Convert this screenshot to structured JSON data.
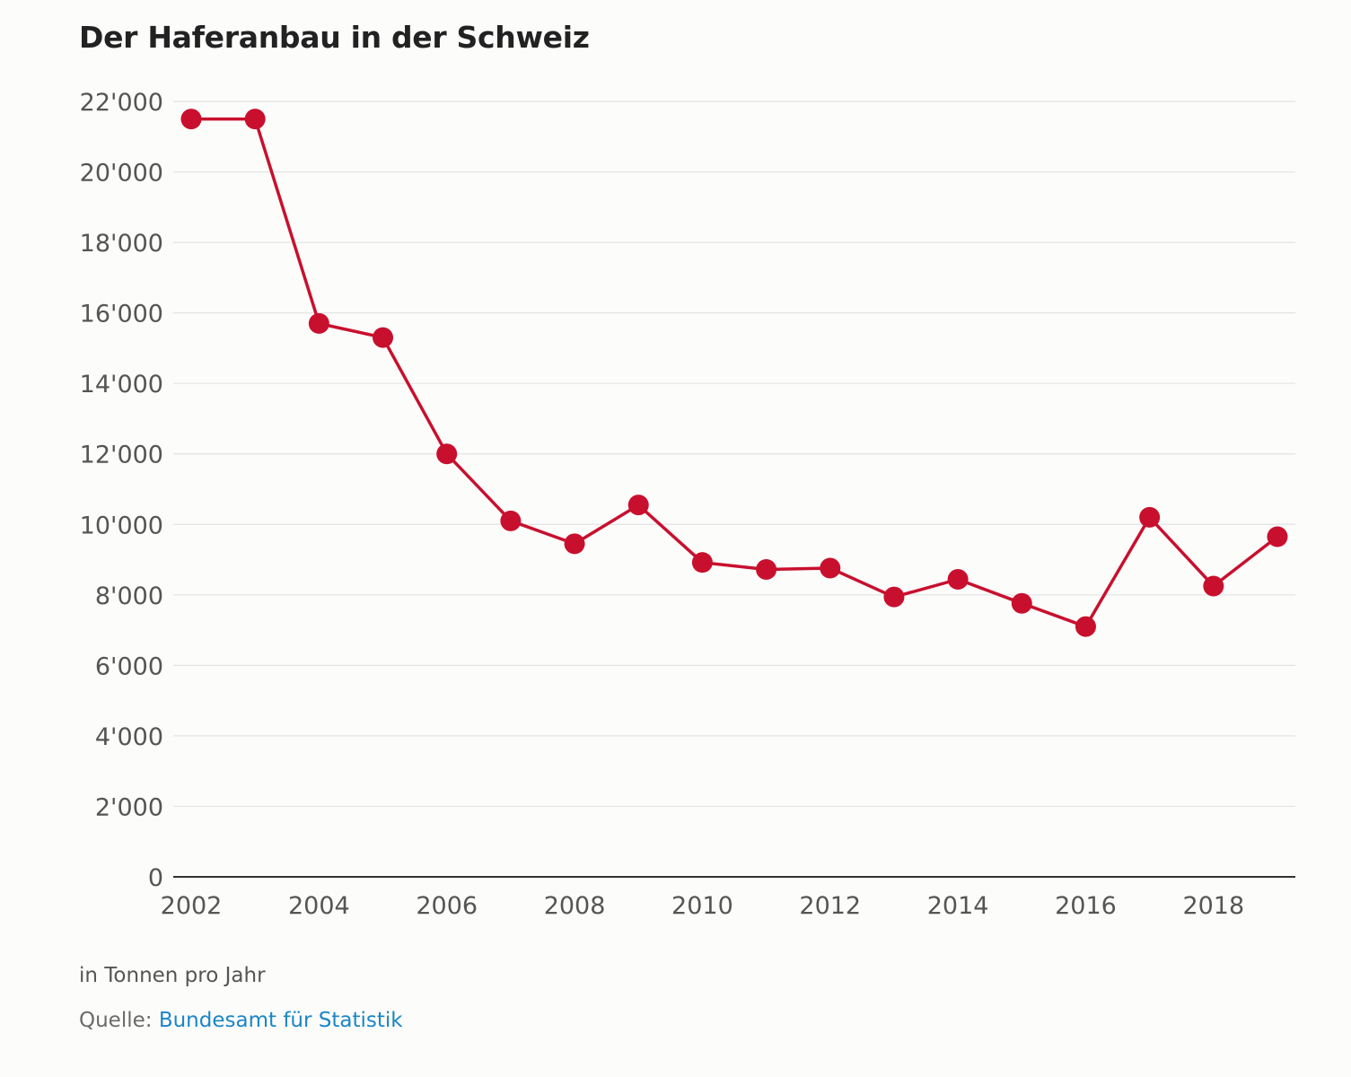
{
  "title": "Der Haferanbau in der Schweiz",
  "footnote": "in Tonnen pro Jahr",
  "source": {
    "label": "Quelle:",
    "link_text": "Bundesamt für Statistik"
  },
  "colors": {
    "series": "#c8102e",
    "grid": "#e3e3e3",
    "axis": "#333333",
    "link": "#1b86c5"
  },
  "chart_data": {
    "type": "line",
    "title": "Der Haferanbau in der Schweiz",
    "xlabel": "",
    "ylabel": "",
    "x": [
      2002,
      2003,
      2004,
      2005,
      2006,
      2007,
      2008,
      2009,
      2010,
      2011,
      2012,
      2013,
      2014,
      2015,
      2016,
      2017,
      2018,
      2019
    ],
    "series": [
      {
        "values": [
          21500,
          21500,
          15700,
          15300,
          12000,
          10100,
          9450,
          10550,
          8920,
          8720,
          8760,
          7940,
          8440,
          7760,
          7100,
          10200,
          8250,
          9650
        ]
      }
    ],
    "xlim": [
      2002,
      2019
    ],
    "ylim": [
      0,
      22000
    ],
    "x_ticks": [
      2002,
      2004,
      2006,
      2008,
      2010,
      2012,
      2014,
      2016,
      2018
    ],
    "x_tick_labels": [
      "2002",
      "2004",
      "2006",
      "2008",
      "2010",
      "2012",
      "2014",
      "2016",
      "2018"
    ],
    "y_ticks": [
      0,
      2000,
      4000,
      6000,
      8000,
      10000,
      12000,
      14000,
      16000,
      18000,
      20000,
      22000
    ],
    "y_tick_labels": [
      "0",
      "2'000",
      "4'000",
      "6'000",
      "8'000",
      "10'000",
      "12'000",
      "14'000",
      "16'000",
      "18'000",
      "20'000",
      "22'000"
    ],
    "grid": true,
    "legend": "none",
    "markers": true
  }
}
